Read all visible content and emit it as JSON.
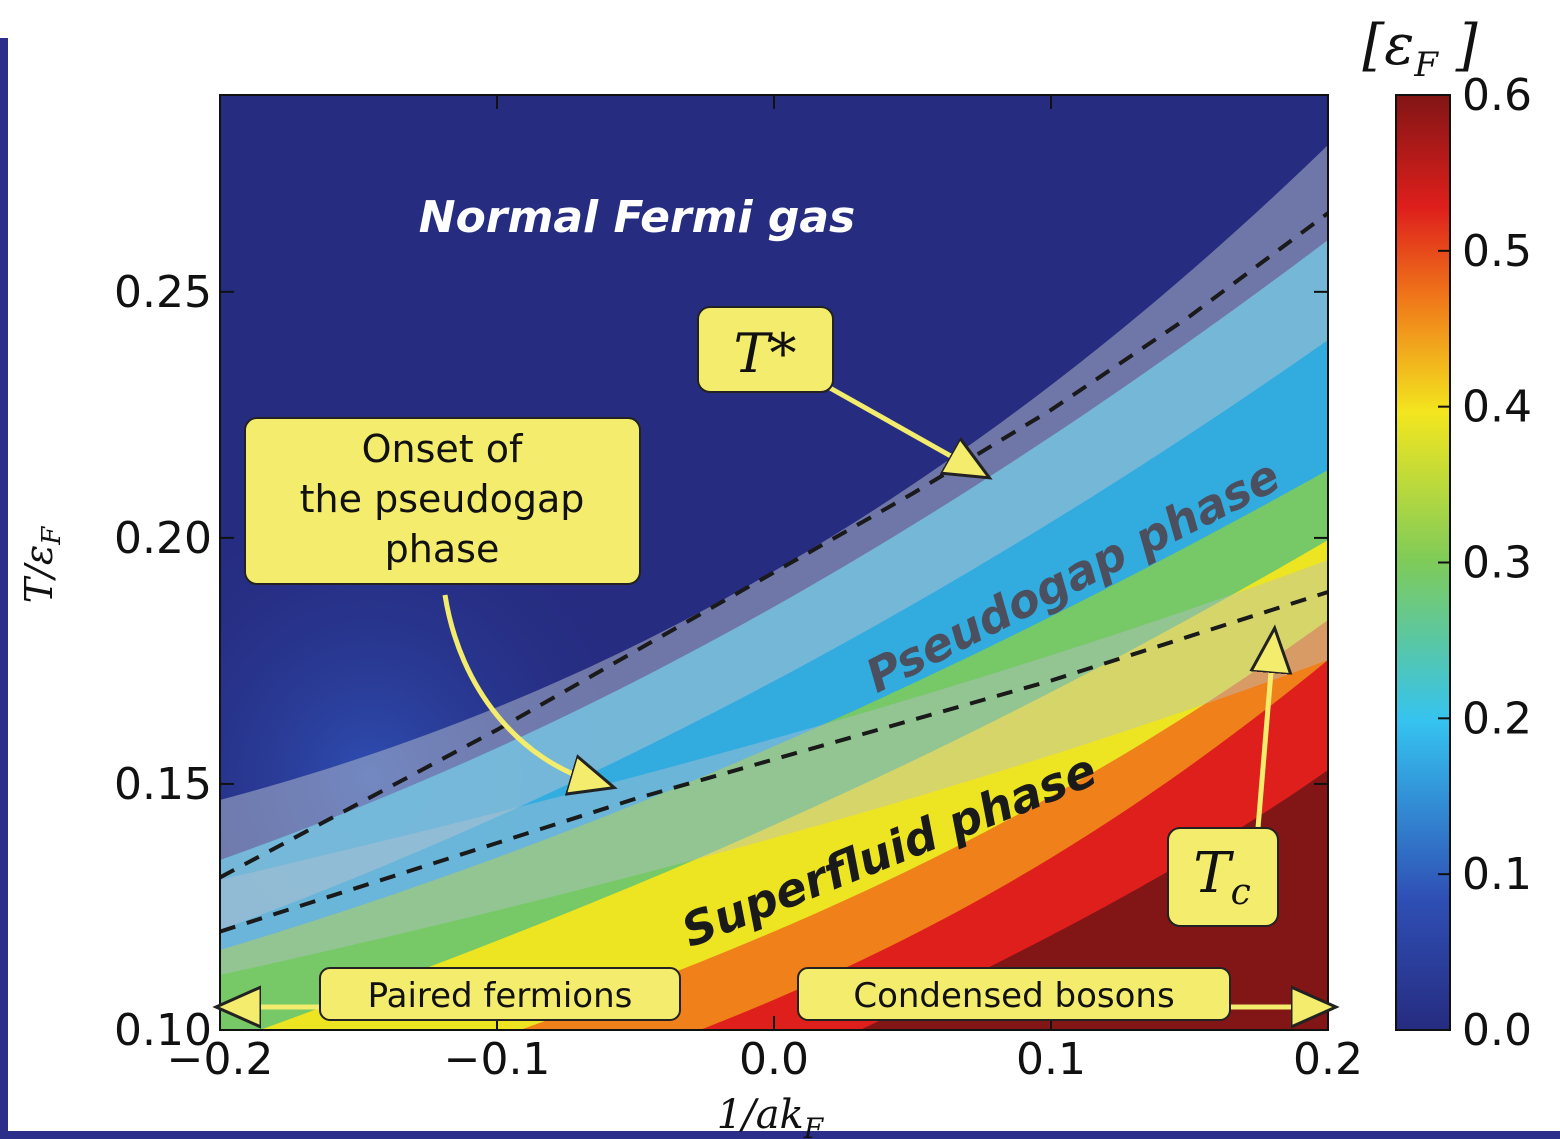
{
  "chart_data": {
    "type": "heatmap",
    "title": "",
    "xlabel": "1/ak_F",
    "ylabel": "T/ε_F",
    "xlim": [
      -0.2,
      0.2
    ],
    "ylim": [
      0.1,
      0.29
    ],
    "x_ticks": [
      -0.2,
      -0.1,
      0.0,
      0.1,
      0.2
    ],
    "x_tick_labels": [
      "−0.2",
      "−0.1",
      "0.0",
      "0.1",
      "0.2"
    ],
    "y_ticks": [
      0.1,
      0.15,
      0.2,
      0.25
    ],
    "y_tick_labels": [
      "0.10",
      "0.15",
      "0.20",
      "0.25"
    ],
    "colorbar": {
      "label": "[ε_F]",
      "range": [
        0.0,
        0.6
      ],
      "ticks": [
        0.0,
        0.1,
        0.2,
        0.3,
        0.4,
        0.5,
        0.6
      ],
      "tick_labels": [
        "0.0",
        "0.1",
        "0.2",
        "0.3",
        "0.4",
        "0.5",
        "0.6"
      ],
      "colormap": [
        "#262c80",
        "#2f4fb5",
        "#35c3f0",
        "#7ecb5a",
        "#f3e61f",
        "#f07a1a",
        "#de1f1c",
        "#821515"
      ]
    },
    "series": [
      {
        "name": "T*",
        "style": "dashed",
        "x": [
          -0.2,
          -0.15,
          -0.1,
          -0.05,
          0.0,
          0.05,
          0.1,
          0.15,
          0.2
        ],
        "y": [
          0.131,
          0.146,
          0.161,
          0.177,
          0.193,
          0.209,
          0.226,
          0.245,
          0.266
        ]
      },
      {
        "name": "T_c",
        "style": "dashed",
        "x": [
          -0.2,
          -0.15,
          -0.1,
          -0.05,
          0.0,
          0.05,
          0.1,
          0.15,
          0.2
        ],
        "y": [
          0.12,
          0.129,
          0.138,
          0.147,
          0.155,
          0.163,
          0.171,
          0.18,
          0.189
        ]
      }
    ],
    "grid": false,
    "annotations": {
      "normal": "Normal Fermi gas",
      "pseudogap": "Pseudogap phase",
      "superfluid": "Superfluid phase",
      "tstar_label": "T*",
      "tc_label": "T_c",
      "onset_line1": "Onset of",
      "onset_line2": "the pseudogap",
      "onset_line3": "phase",
      "paired": "Paired fermions",
      "condensed": "Condensed bosons"
    }
  }
}
